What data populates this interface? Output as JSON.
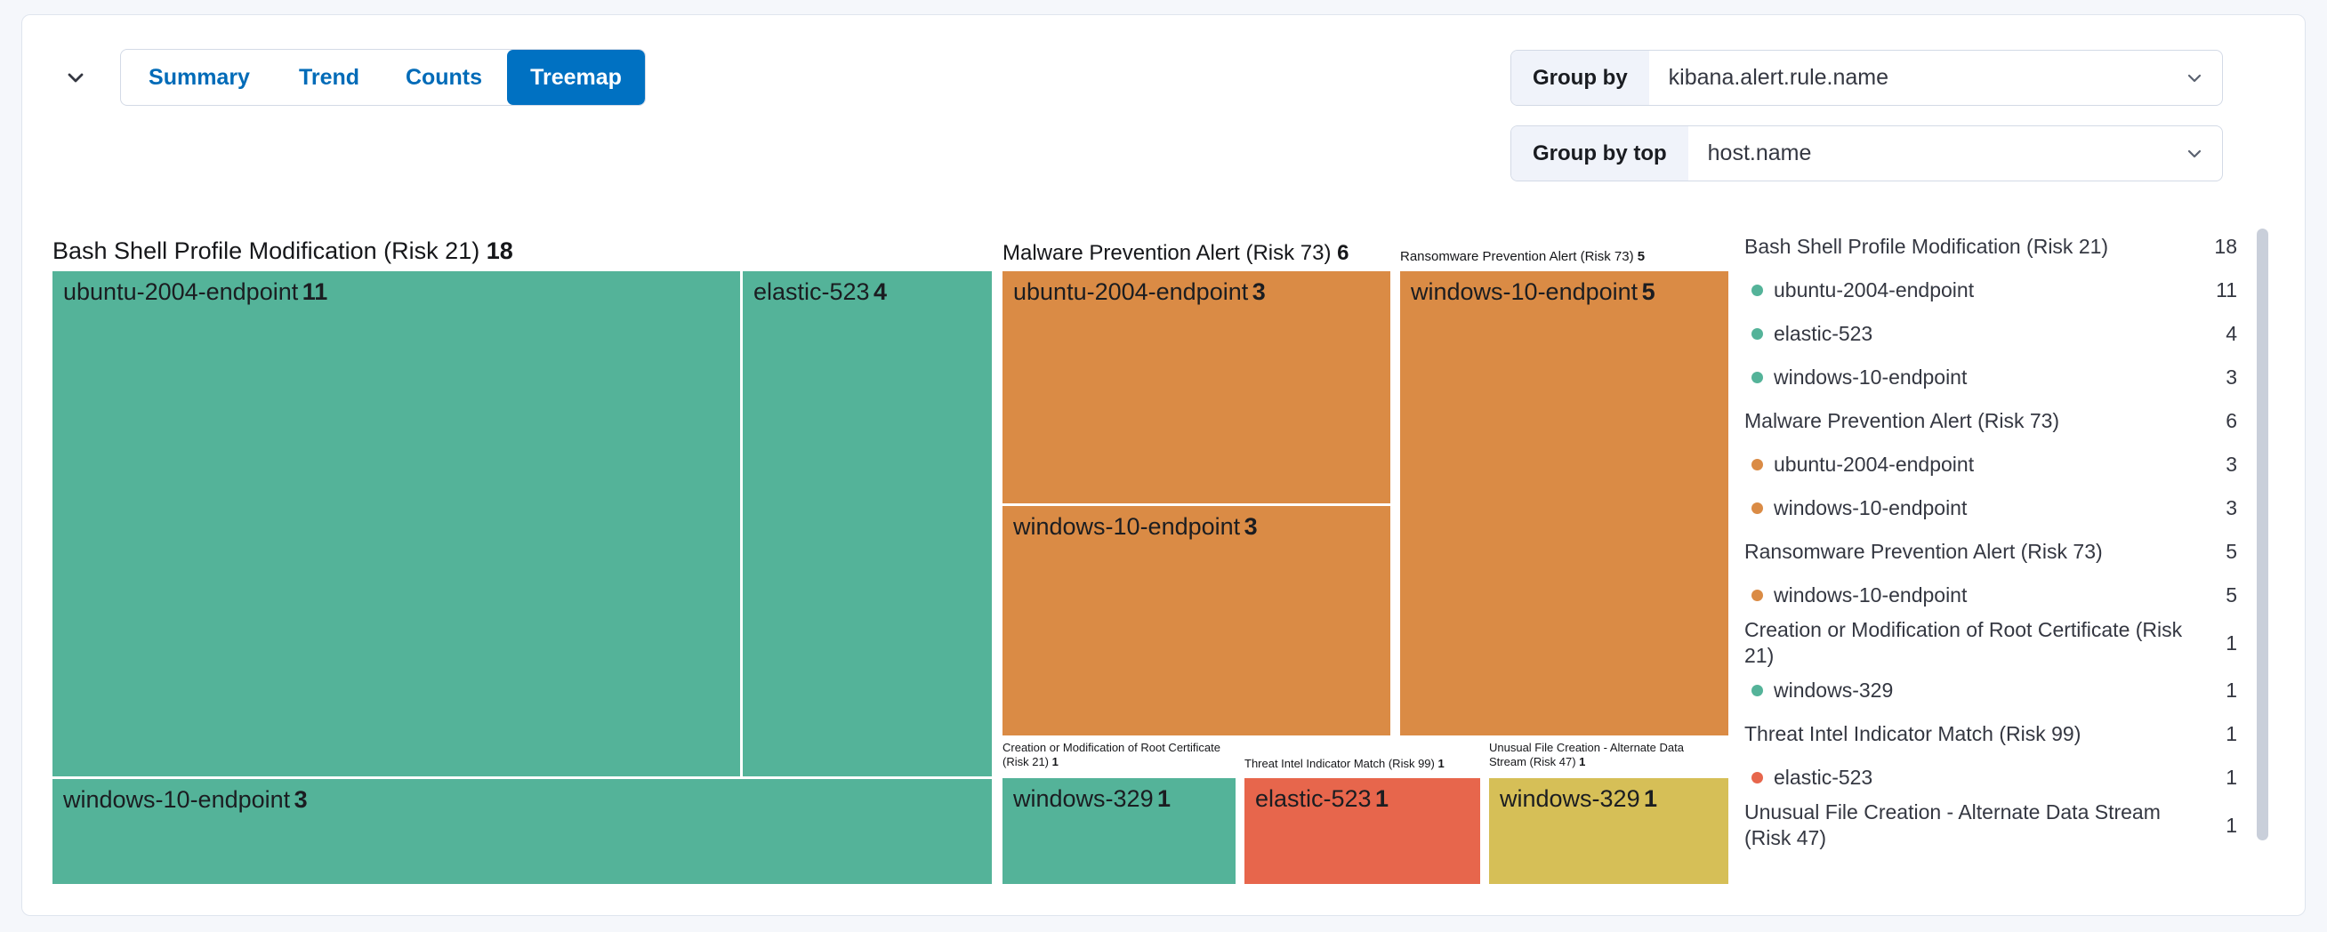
{
  "panel": {
    "tabs": [
      "Summary",
      "Trend",
      "Counts",
      "Treemap"
    ],
    "selected_tab": "Treemap",
    "group_by": {
      "label": "Group by",
      "value": "kibana.alert.rule.name"
    },
    "group_by_top": {
      "label": "Group by top",
      "value": "host.name"
    }
  },
  "icons": {
    "collapse": "chevron-down",
    "select_arrow": "chevron-down"
  },
  "colors": {
    "risk_low_green": "#54b399",
    "risk_medium_yellow": "#d6bf57",
    "risk_high_orange": "#da8b45",
    "risk_critical_red": "#e7664c",
    "selected_tab_bg": "#0071c2",
    "tab_text": "#006bb8"
  },
  "treemap": {
    "groups": [
      {
        "title": "Bash Shell Profile Modification (Risk 21)",
        "count": "18",
        "color": "#54b399",
        "cells": [
          {
            "label": "ubuntu-2004-endpoint",
            "count": "11"
          },
          {
            "label": "elastic-523",
            "count": "4"
          },
          {
            "label": "windows-10-endpoint",
            "count": "3"
          }
        ]
      },
      {
        "title": "Malware Prevention Alert (Risk 73)",
        "count": "6",
        "color": "#da8b45",
        "cells": [
          {
            "label": "ubuntu-2004-endpoint",
            "count": "3"
          },
          {
            "label": "windows-10-endpoint",
            "count": "3"
          }
        ]
      },
      {
        "title": "Ransomware Prevention Alert (Risk 73)",
        "count": "5",
        "color": "#da8b45",
        "cells": [
          {
            "label": "windows-10-endpoint",
            "count": "5"
          }
        ]
      },
      {
        "title": "Creation or Modification of Root Certificate (Risk 21)",
        "count": "1",
        "color": "#54b399",
        "cells": [
          {
            "label": "windows-329",
            "count": "1"
          }
        ]
      },
      {
        "title": "Threat Intel Indicator Match (Risk 99)",
        "count": "1",
        "color": "#e7664c",
        "cells": [
          {
            "label": "elastic-523",
            "count": "1"
          }
        ]
      },
      {
        "title": "Unusual File Creation - Alternate Data Stream (Risk 47)",
        "count": "1",
        "color": "#d6bf57",
        "cells": [
          {
            "label": "windows-329",
            "count": "1"
          }
        ]
      }
    ]
  },
  "legend": {
    "rows": [
      {
        "type": "title",
        "label": "Bash Shell Profile Modification (Risk 21)",
        "count": "18"
      },
      {
        "type": "item",
        "color": "#54b399",
        "label": "ubuntu-2004-endpoint",
        "count": "11"
      },
      {
        "type": "item",
        "color": "#54b399",
        "label": "elastic-523",
        "count": "4"
      },
      {
        "type": "item",
        "color": "#54b399",
        "label": "windows-10-endpoint",
        "count": "3"
      },
      {
        "type": "title",
        "label": "Malware Prevention Alert (Risk 73)",
        "count": "6"
      },
      {
        "type": "item",
        "color": "#da8b45",
        "label": "ubuntu-2004-endpoint",
        "count": "3"
      },
      {
        "type": "item",
        "color": "#da8b45",
        "label": "windows-10-endpoint",
        "count": "3"
      },
      {
        "type": "title",
        "label": "Ransomware Prevention Alert (Risk 73)",
        "count": "5"
      },
      {
        "type": "item",
        "color": "#da8b45",
        "label": "windows-10-endpoint",
        "count": "5"
      },
      {
        "type": "title",
        "label": "Creation or Modification of Root Certificate (Risk 21)",
        "count": "1"
      },
      {
        "type": "item",
        "color": "#54b399",
        "label": "windows-329",
        "count": "1"
      },
      {
        "type": "title",
        "label": "Threat Intel Indicator Match (Risk 99)",
        "count": "1"
      },
      {
        "type": "item",
        "color": "#e7664c",
        "label": "elastic-523",
        "count": "1"
      },
      {
        "type": "title",
        "label": "Unusual File Creation - Alternate Data Stream (Risk 47)",
        "count": "1"
      }
    ]
  },
  "chart_data": {
    "type": "treemap",
    "title": "Alerts grouped by kibana.alert.rule.name, sub-grouped by host.name",
    "group_by": "kibana.alert.rule.name",
    "group_by_top": "host.name",
    "groups": [
      {
        "name": "Bash Shell Profile Modification (Risk 21)",
        "total": 18,
        "color": "#54b399",
        "children": [
          {
            "name": "ubuntu-2004-endpoint",
            "value": 11
          },
          {
            "name": "elastic-523",
            "value": 4
          },
          {
            "name": "windows-10-endpoint",
            "value": 3
          }
        ]
      },
      {
        "name": "Malware Prevention Alert (Risk 73)",
        "total": 6,
        "color": "#da8b45",
        "children": [
          {
            "name": "ubuntu-2004-endpoint",
            "value": 3
          },
          {
            "name": "windows-10-endpoint",
            "value": 3
          }
        ]
      },
      {
        "name": "Ransomware Prevention Alert (Risk 73)",
        "total": 5,
        "color": "#da8b45",
        "children": [
          {
            "name": "windows-10-endpoint",
            "value": 5
          }
        ]
      },
      {
        "name": "Creation or Modification of Root Certificate (Risk 21)",
        "total": 1,
        "color": "#54b399",
        "children": [
          {
            "name": "windows-329",
            "value": 1
          }
        ]
      },
      {
        "name": "Threat Intel Indicator Match (Risk 99)",
        "total": 1,
        "color": "#e7664c",
        "children": [
          {
            "name": "elastic-523",
            "value": 1
          }
        ]
      },
      {
        "name": "Unusual File Creation - Alternate Data Stream (Risk 47)",
        "total": 1,
        "color": "#d6bf57",
        "children": [
          {
            "name": "windows-329",
            "value": 1
          }
        ]
      }
    ],
    "legend_position": "right"
  }
}
